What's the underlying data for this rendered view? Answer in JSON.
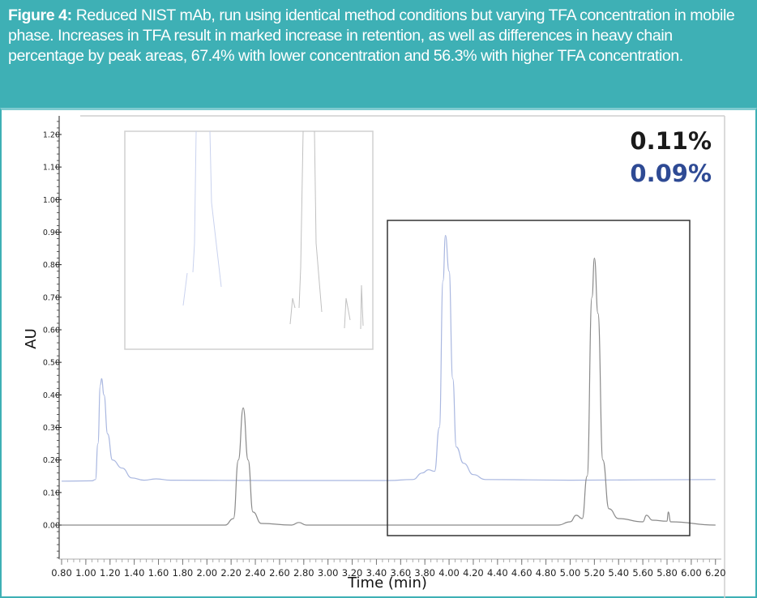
{
  "caption": {
    "label": "Figure 4:",
    "text": " Reduced NIST mAb, run using identical method conditions but varying TFA concentration in mobile phase. Increases in TFA result in marked increase in retention, as well as differences in heavy chain percentage by peak areas, 67.4% with lower concentration and 56.3% with higher TFA concentration."
  },
  "colors": {
    "caption_bg": "#3eb0b5",
    "series_low_tfa": "#a9b7e0",
    "series_high_tfa": "#8a8a8a",
    "pct_black": "#1a1a1a",
    "pct_blue": "#2e4a94"
  },
  "annotations": {
    "pct_1": "0.11%",
    "pct_2": "0.09%"
  },
  "chart_data": {
    "type": "line",
    "title": "",
    "xlabel": "Time (min)",
    "ylabel": "AU",
    "xlim": [
      0.8,
      6.2
    ],
    "ylim": [
      -0.1,
      1.25
    ],
    "grid": false,
    "x_ticks": [
      "0.80",
      "1.00",
      "1.20",
      "1.40",
      "1.60",
      "1.80",
      "2.00",
      "2.20",
      "2.40",
      "2.60",
      "2.80",
      "3.00",
      "3.20",
      "3.40",
      "3.60",
      "3.80",
      "4.00",
      "4.20",
      "4.40",
      "4.60",
      "4.80",
      "5.00",
      "5.20",
      "5.40",
      "5.60",
      "5.80",
      "6.00",
      "6.20"
    ],
    "y_ticks": [
      "0.00",
      "0.10",
      "0.20",
      "0.30",
      "0.40",
      "0.50",
      "0.60",
      "0.70",
      "0.80",
      "0.90",
      "1.00",
      "1.10",
      "1.20"
    ],
    "series": [
      {
        "name": "Lower TFA (blue trace, offset)",
        "color": "#a9b7e0",
        "points": [
          [
            0.8,
            0.135
          ],
          [
            1.05,
            0.136
          ],
          [
            1.08,
            0.14
          ],
          [
            1.1,
            0.25
          ],
          [
            1.12,
            0.43
          ],
          [
            1.13,
            0.45
          ],
          [
            1.15,
            0.4
          ],
          [
            1.18,
            0.28
          ],
          [
            1.22,
            0.2
          ],
          [
            1.3,
            0.175
          ],
          [
            1.38,
            0.145
          ],
          [
            1.48,
            0.138
          ],
          [
            1.58,
            0.142
          ],
          [
            1.7,
            0.138
          ],
          [
            2.5,
            0.137
          ],
          [
            3.5,
            0.137
          ],
          [
            3.7,
            0.14
          ],
          [
            3.78,
            0.16
          ],
          [
            3.83,
            0.17
          ],
          [
            3.88,
            0.165
          ],
          [
            3.92,
            0.3
          ],
          [
            3.95,
            0.75
          ],
          [
            3.97,
            0.89
          ],
          [
            4.0,
            0.78
          ],
          [
            4.03,
            0.45
          ],
          [
            4.06,
            0.24
          ],
          [
            4.12,
            0.19
          ],
          [
            4.2,
            0.155
          ],
          [
            4.3,
            0.14
          ],
          [
            5.0,
            0.138
          ],
          [
            6.2,
            0.14
          ]
        ],
        "peaks": [
          {
            "x": 1.13,
            "y": 0.45
          },
          {
            "x": 3.97,
            "y": 0.89
          }
        ]
      },
      {
        "name": "Higher TFA (gray trace)",
        "color": "#8a8a8a",
        "points": [
          [
            0.8,
            0.0
          ],
          [
            2.15,
            0.0
          ],
          [
            2.22,
            0.02
          ],
          [
            2.26,
            0.2
          ],
          [
            2.3,
            0.36
          ],
          [
            2.34,
            0.2
          ],
          [
            2.38,
            0.04
          ],
          [
            2.45,
            0.005
          ],
          [
            2.7,
            0.0
          ],
          [
            2.76,
            0.008
          ],
          [
            2.82,
            0.0
          ],
          [
            4.9,
            0.0
          ],
          [
            5.0,
            0.01
          ],
          [
            5.05,
            0.03
          ],
          [
            5.1,
            0.02
          ],
          [
            5.14,
            0.15
          ],
          [
            5.18,
            0.7
          ],
          [
            5.2,
            0.82
          ],
          [
            5.23,
            0.65
          ],
          [
            5.27,
            0.2
          ],
          [
            5.32,
            0.05
          ],
          [
            5.4,
            0.02
          ],
          [
            5.6,
            0.01
          ],
          [
            5.63,
            0.03
          ],
          [
            5.68,
            0.015
          ],
          [
            5.8,
            0.012
          ],
          [
            5.81,
            0.04
          ],
          [
            5.83,
            0.01
          ],
          [
            6.2,
            0.0
          ]
        ],
        "peaks": [
          {
            "x": 2.3,
            "y": 0.36
          },
          {
            "x": 5.2,
            "y": 0.82
          }
        ]
      }
    ],
    "annotations": [
      {
        "text": "0.11%",
        "color": "#1a1a1a"
      },
      {
        "text": "0.09%",
        "color": "#2e4a94"
      }
    ],
    "zoom_box": {
      "x_range": [
        3.48,
        5.98
      ],
      "y_range": [
        -0.03,
        0.93
      ]
    },
    "inset": {
      "description": "magnified baseline of both traces showing minor peaks",
      "position": "upper-left"
    }
  }
}
